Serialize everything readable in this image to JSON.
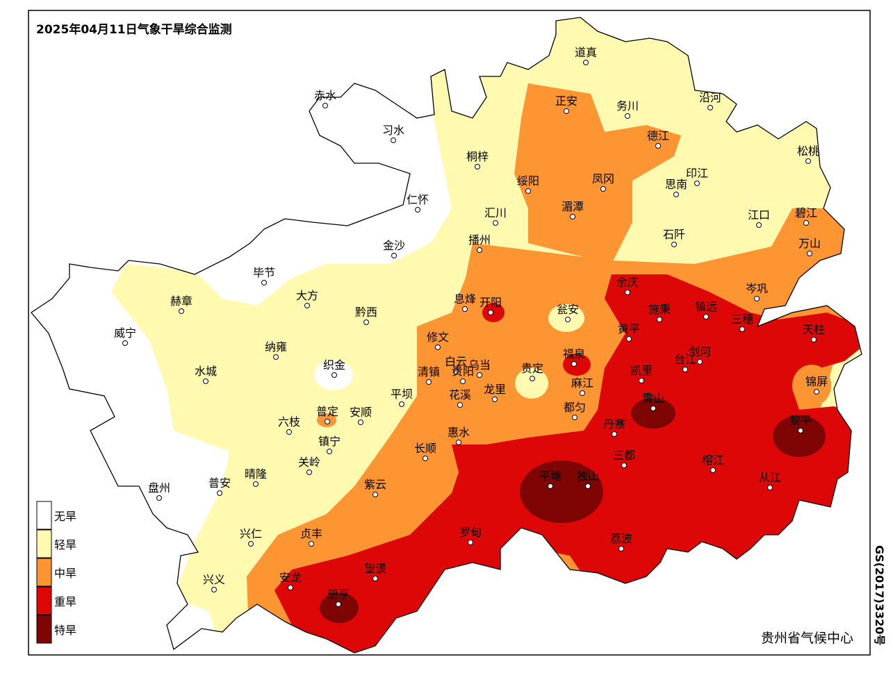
{
  "title": "2025年04月11日气象干旱综合监测",
  "legend": [
    {
      "label": "无旱",
      "color": "#ffffff"
    },
    {
      "label": "轻旱",
      "color": "#fffab0"
    },
    {
      "label": "中旱",
      "color": "#fd9533"
    },
    {
      "label": "重旱",
      "color": "#dd0707"
    },
    {
      "label": "特旱",
      "color": "#7f0505"
    }
  ],
  "cities": [
    "道真",
    "正安",
    "务川",
    "沿河",
    "赤水",
    "习水",
    "桐梓",
    "德江",
    "松桃",
    "绥阳",
    "凤冈",
    "印江",
    "思南",
    "仁怀",
    "汇川",
    "湄潭",
    "江口",
    "碧江",
    "石阡",
    "万山",
    "播州",
    "金沙",
    "毕节",
    "余庆",
    "岑巩",
    "赫章",
    "大方",
    "黔西",
    "息烽",
    "开阳",
    "瓮安",
    "施秉",
    "镇远",
    "三穗",
    "天柱",
    "威宁",
    "纳雍",
    "修文",
    "黄平",
    "福泉",
    "剑河",
    "台江",
    "白云",
    "乌当",
    "凯里",
    "织金",
    "水城",
    "清镇",
    "贵阳",
    "贵定",
    "龙里",
    "麻江",
    "锦屏",
    "普定",
    "安顺",
    "平坝",
    "花溪",
    "都匀",
    "雷山",
    "六枝",
    "黎平",
    "丹寨",
    "镇宁",
    "惠水",
    "长顺",
    "关岭",
    "三都",
    "榕江",
    "晴隆",
    "普安",
    "盘州",
    "平塘",
    "独山",
    "紫云",
    "从江",
    "兴仁",
    "贞丰",
    "罗甸",
    "荔波",
    "望谟",
    "安龙",
    "兴义",
    "册亨"
  ],
  "credit": "贵州省气候中心",
  "map_number": "GS(2017)3320号"
}
